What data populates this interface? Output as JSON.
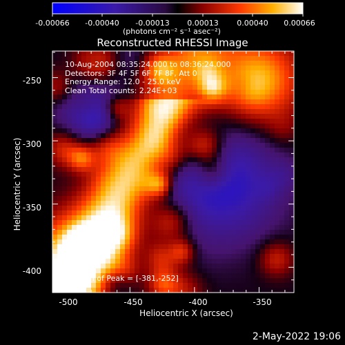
{
  "colorbar": {
    "ticks": [
      "-0.00066",
      "-0.00040",
      "-0.00013",
      "0.00013",
      "0.00040",
      "0.00066"
    ],
    "units": "(photons cm⁻² s⁻¹ asec⁻²)",
    "range": [
      -0.00066,
      0.00066
    ]
  },
  "title": "Reconstructed RHESSI Image",
  "info": {
    "line1": "10-Aug-2004 08:35:24.000 to 08:36:24.000",
    "line2": "Detectors: 3F 4F 5F 6F 7F 8F, Att 0",
    "line3": "Energy Range: 12.0 - 25.0 keV",
    "line4": "Clean    Total counts: 2.24E+03"
  },
  "peak": "Position of Peak = [-381,-252]",
  "axes": {
    "xlabel": "Heliocentric X (arcsec)",
    "ylabel": "Heliocentric Y (arcsec)",
    "xticks": [
      "-500",
      "-450",
      "-400",
      "-350"
    ],
    "xtick_values": [
      -500,
      -450,
      -400,
      -350
    ],
    "yticks": [
      "-250",
      "-300",
      "-350",
      "-400"
    ],
    "ytick_values": [
      -250,
      -300,
      -350,
      -400
    ],
    "xlim": [
      -510,
      -323
    ],
    "ylim": [
      -420,
      -229
    ]
  },
  "footer": "2-May-2022 19:06"
}
